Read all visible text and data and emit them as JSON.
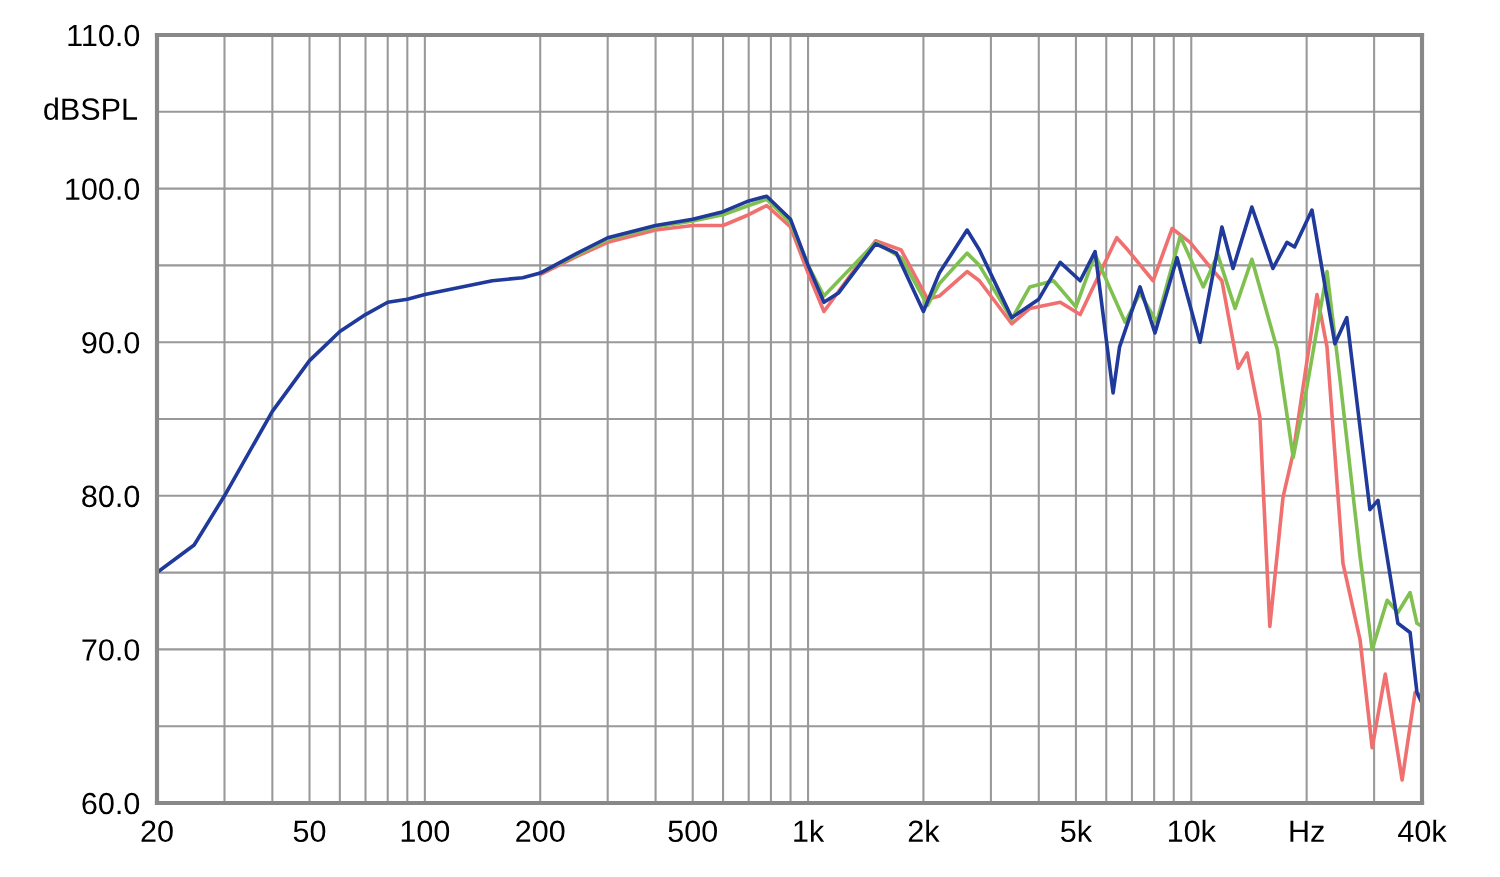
{
  "chart_data": {
    "type": "line",
    "ylabel": "dBSPL",
    "log": "x",
    "grid": true,
    "legend": false,
    "marker": "none",
    "line_style": "solid",
    "xlim": [
      20,
      40000
    ],
    "ylim": [
      60,
      110
    ],
    "xticks": [
      20,
      {
        "value": 30,
        "label": null
      },
      {
        "value": 40,
        "label": null
      },
      50,
      {
        "value": 60,
        "label": null
      },
      {
        "value": 70,
        "label": null
      },
      {
        "value": 80,
        "label": null
      },
      {
        "value": 90,
        "label": null
      },
      100,
      200,
      {
        "value": 300,
        "label": null
      },
      {
        "value": 400,
        "label": null
      },
      500,
      {
        "value": 600,
        "label": null
      },
      {
        "value": 700,
        "label": null
      },
      {
        "value": 800,
        "label": null
      },
      {
        "value": 900,
        "label": null
      },
      {
        "value": 1000,
        "label": "1k"
      },
      {
        "value": 2000,
        "label": "2k"
      },
      {
        "value": 3000,
        "label": null
      },
      {
        "value": 4000,
        "label": null
      },
      {
        "value": 5000,
        "label": "5k"
      },
      {
        "value": 6000,
        "label": null
      },
      {
        "value": 7000,
        "label": null
      },
      {
        "value": 8000,
        "label": null
      },
      {
        "value": 9000,
        "label": null
      },
      {
        "value": 10000,
        "label": "10k"
      },
      {
        "value": 20000,
        "label": "Hz"
      },
      {
        "value": 30000,
        "label": null
      },
      {
        "value": 40000,
        "label": "40k"
      }
    ],
    "yticks": [
      {
        "value": 60,
        "label": "60.0"
      },
      {
        "value": 65,
        "label": null
      },
      {
        "value": 70,
        "label": "70.0"
      },
      {
        "value": 75,
        "label": null
      },
      {
        "value": 80,
        "label": "80.0"
      },
      {
        "value": 85,
        "label": null
      },
      {
        "value": 90,
        "label": "90.0"
      },
      {
        "value": 95,
        "label": null
      },
      {
        "value": 100,
        "label": "100.0"
      },
      {
        "value": 105,
        "label": null
      },
      {
        "value": 110,
        "label": "110.0"
      }
    ],
    "series": [
      {
        "color": "#f07070",
        "x": [
          200,
          250,
          300,
          400,
          500,
          600,
          700,
          780,
          900,
          1000,
          1100,
          1500,
          1750,
          2050,
          2200,
          2600,
          2800,
          3400,
          3790,
          4550,
          5130,
          6390,
          6830,
          7950,
          8910,
          9930,
          11190,
          12020,
          13250,
          13990,
          15100,
          16030,
          17350,
          18450,
          21280,
          22600,
          24880,
          27580,
          29650,
          32080,
          35500,
          38370,
          40000
        ],
        "values": [
          94.4,
          95.6,
          96.5,
          97.3,
          97.6,
          97.6,
          98.3,
          98.9,
          97.5,
          94.5,
          92.0,
          96.6,
          96.0,
          92.8,
          93.0,
          94.6,
          94.0,
          91.2,
          92.2,
          92.6,
          91.8,
          96.8,
          96.0,
          94.0,
          97.4,
          96.5,
          94.9,
          94.0,
          88.3,
          89.3,
          85.1,
          71.5,
          79.9,
          82.8,
          93.1,
          89.7,
          75.6,
          70.6,
          63.6,
          68.4,
          61.5,
          67.2,
          67.0
        ]
      },
      {
        "color": "#80c050",
        "x": [
          200,
          250,
          300,
          400,
          500,
          600,
          700,
          780,
          900,
          1000,
          1100,
          1500,
          1750,
          2050,
          2200,
          2600,
          2800,
          3400,
          3790,
          4370,
          5000,
          5610,
          6720,
          7350,
          8120,
          9360,
          10750,
          11720,
          13010,
          14390,
          16780,
          18450,
          20040,
          22600,
          24460,
          27580,
          29650,
          32450,
          34600,
          37240,
          38800,
          40000
        ],
        "values": [
          94.5,
          95.7,
          96.7,
          97.5,
          97.9,
          98.3,
          98.9,
          99.3,
          97.8,
          95.0,
          93.0,
          96.5,
          95.5,
          92.4,
          93.8,
          95.8,
          95.0,
          91.5,
          93.6,
          94.0,
          92.3,
          95.7,
          91.3,
          93.2,
          91.3,
          96.9,
          93.6,
          95.7,
          92.2,
          95.4,
          89.5,
          82.5,
          87.1,
          94.6,
          87.5,
          76.0,
          70.0,
          73.2,
          72.4,
          73.7,
          71.7,
          71.5
        ]
      },
      {
        "color": "#1f3a9a",
        "x": [
          20,
          25,
          30,
          40,
          50,
          60,
          70,
          80,
          90,
          100,
          150,
          180,
          200,
          250,
          300,
          400,
          500,
          600,
          700,
          780,
          900,
          1000,
          1100,
          1200,
          1500,
          1700,
          2000,
          2200,
          2600,
          2800,
          3400,
          4000,
          4550,
          5130,
          5610,
          6250,
          6500,
          7350,
          8040,
          9180,
          10540,
          12020,
          12850,
          14390,
          16330,
          17770,
          18600,
          20650,
          23700,
          25460,
          29250,
          30700,
          34600,
          37240,
          38800,
          40000
        ],
        "values": [
          75.0,
          76.8,
          80.0,
          85.5,
          88.8,
          90.7,
          91.8,
          92.6,
          92.8,
          93.1,
          94.0,
          94.2,
          94.5,
          95.8,
          96.8,
          97.6,
          98.0,
          98.5,
          99.2,
          99.5,
          98.0,
          95.0,
          92.6,
          93.2,
          96.4,
          95.8,
          92.0,
          94.5,
          97.3,
          96.0,
          91.6,
          92.8,
          95.2,
          94.0,
          95.9,
          86.7,
          89.7,
          93.6,
          90.6,
          95.5,
          90.0,
          97.5,
          94.8,
          98.8,
          94.8,
          96.5,
          96.2,
          98.6,
          89.9,
          91.6,
          79.1,
          79.7,
          71.7,
          71.1,
          67.2,
          66.5
        ]
      }
    ]
  }
}
